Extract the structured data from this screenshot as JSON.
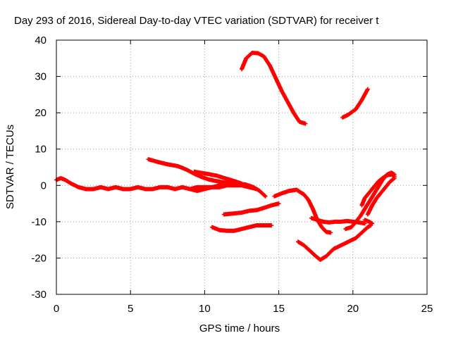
{
  "chart_data": {
    "type": "scatter",
    "title": "Day 293 of 2016, Sidereal Day-to-day VTEC variation (SDTVAR) for receiver t",
    "xlabel": "GPS time / hours",
    "ylabel": "SDTVAR / TECUs",
    "xlim": [
      0,
      25
    ],
    "ylim": [
      -30,
      40
    ],
    "x_ticks": [
      "0",
      "5",
      "10",
      "15",
      "20",
      "25"
    ],
    "y_ticks": [
      "40",
      "30",
      "20",
      "10",
      "0",
      "-10",
      "-20",
      "-30"
    ],
    "grid": true,
    "legend": "none",
    "marker": "plus",
    "color": "#ff0000",
    "series": [
      {
        "x": [
          0.0,
          0.3,
          0.6,
          1.0,
          1.5,
          2.0,
          2.5,
          3.0,
          3.5,
          4.0,
          4.5,
          5.0,
          5.5,
          6.0,
          6.5,
          7.0,
          7.5,
          8.0,
          8.5,
          9.0,
          9.5,
          10.0,
          10.5,
          11.0,
          11.5,
          12.0,
          12.5,
          13.0,
          13.5
        ],
        "y": [
          1.5,
          2,
          1.5,
          0.5,
          -0.5,
          -1,
          -1,
          -0.5,
          -1,
          -0.5,
          -1,
          -1,
          -0.5,
          -1,
          -1,
          -0.5,
          -0.5,
          -1,
          -0.5,
          -1,
          -0.5,
          -0.5,
          -0.5,
          -0.5,
          0,
          0,
          0,
          -0.5,
          -1
        ]
      },
      {
        "x": [
          6.2,
          6.8,
          7.5,
          8.2,
          8.8,
          9.3,
          9.8,
          10.3,
          10.8,
          11.3,
          11.8,
          12.3,
          12.8,
          13.3,
          13.7,
          14.1
        ],
        "y": [
          7.2,
          6.5,
          5.8,
          5.3,
          4.3,
          3.2,
          2.3,
          1.6,
          1.2,
          0.8,
          0.6,
          0.5,
          0.2,
          -0.5,
          -1.5,
          -3
        ]
      },
      {
        "x": [
          9.3,
          10.0,
          10.8,
          11.5,
          12.0,
          12.5
        ],
        "y": [
          3.8,
          3.3,
          2.7,
          1.8,
          1.2,
          0.5
        ]
      },
      {
        "x": [
          9.0,
          9.5,
          10.0,
          10.5,
          11.0,
          11.5
        ],
        "y": [
          -1,
          -1.5,
          -1,
          -0.5,
          0,
          0.5
        ]
      },
      {
        "x": [
          12.5,
          12.8,
          13.2,
          13.6,
          14.0,
          14.4,
          14.8,
          15.2,
          15.6,
          16.0,
          16.4,
          16.8
        ],
        "y": [
          32,
          35,
          36.5,
          36.4,
          35.5,
          33,
          29.5,
          26,
          23,
          20,
          17.5,
          17
        ]
      },
      {
        "x": [
          19.3,
          19.7,
          20.2,
          20.6,
          21.0
        ],
        "y": [
          18.7,
          19.5,
          21,
          23.5,
          26.5
        ]
      },
      {
        "x": [
          11.3,
          11.8,
          12.5,
          13.0,
          13.5,
          14.0,
          14.5,
          15.0
        ],
        "y": [
          -8,
          -7.8,
          -7.5,
          -7,
          -6.8,
          -6.2,
          -5.5,
          -5
        ]
      },
      {
        "x": [
          10.5,
          11.0,
          11.5,
          12.0,
          12.5,
          13.0,
          13.5,
          14.0,
          14.5
        ],
        "y": [
          -11.5,
          -12.3,
          -12.5,
          -12.5,
          -12,
          -11.5,
          -11,
          -11,
          -11
        ]
      },
      {
        "x": [
          14.7,
          15.2,
          15.7,
          16.2,
          16.7,
          17.0,
          17.3,
          17.6,
          17.9,
          18.2,
          18.5
        ],
        "y": [
          -3,
          -2.2,
          -1.5,
          -1.2,
          -2.5,
          -4,
          -6.5,
          -9.5,
          -11.5,
          -12.8,
          -13
        ]
      },
      {
        "x": [
          17.2,
          17.6,
          18.0,
          18.4,
          18.8,
          19.2,
          19.6,
          20.0,
          20.4,
          20.8
        ],
        "y": [
          -9,
          -9.5,
          -10,
          -10.2,
          -10,
          -10,
          -9.8,
          -10,
          -10.2,
          -10.5
        ]
      },
      {
        "x": [
          16.3,
          16.7,
          17.1,
          17.5,
          17.8,
          18.2,
          18.7,
          19.2,
          19.7,
          20.2,
          20.6,
          21.0,
          21.2
        ],
        "y": [
          -15.5,
          -16.5,
          -18,
          -19.5,
          -20.5,
          -19.5,
          -17.5,
          -16.5,
          -15.5,
          -14.5,
          -13,
          -11.5,
          -11
        ]
      },
      {
        "x": [
          19.5,
          19.9,
          20.2,
          20.5,
          20.8,
          21.1,
          21.4,
          21.7,
          22.0,
          22.3,
          22.6,
          22.8
        ],
        "y": [
          -12,
          -11.5,
          -10,
          -8.5,
          -6.5,
          -4.5,
          -2.5,
          -0.5,
          1.5,
          3,
          3.5,
          3
        ]
      },
      {
        "x": [
          20.6,
          20.8,
          21.1,
          21.4,
          21.7,
          22.0,
          22.3,
          22.6,
          22.8
        ],
        "y": [
          -5.5,
          -3.5,
          -2,
          -0.5,
          1,
          2,
          2.8,
          3,
          2.5
        ]
      },
      {
        "x": [
          21.0,
          21.3,
          21.6,
          21.9,
          22.2,
          22.5,
          22.8
        ],
        "y": [
          -8,
          -5.5,
          -3.5,
          -2,
          -0.5,
          1,
          2
        ]
      },
      {
        "x": [
          21.3,
          21.1,
          20.8
        ],
        "y": [
          -10.5,
          -10,
          -9.5
        ]
      }
    ]
  }
}
